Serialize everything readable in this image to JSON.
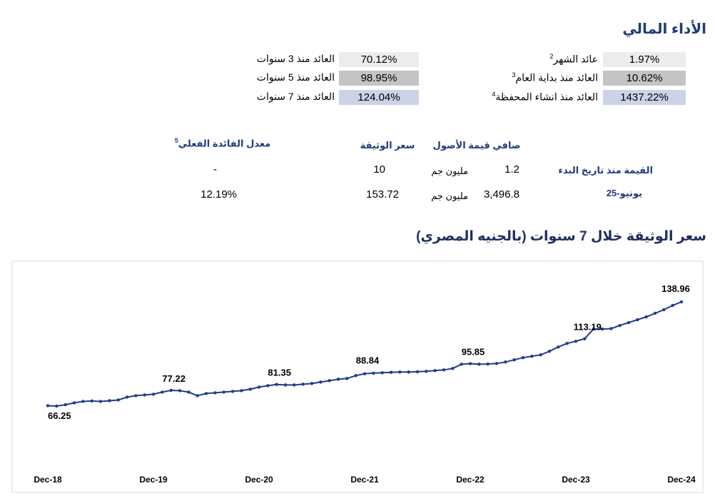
{
  "header": {
    "title": "الأداء المالي"
  },
  "returns": {
    "right": [
      {
        "label": "عائد الشهر",
        "note": "2",
        "value": "1.97%"
      },
      {
        "label": "العائد منذ بداية العام",
        "note": "3",
        "value": "10.62%"
      },
      {
        "label": "العائد منذ انشاء المحفظة",
        "note": "4",
        "value": "1437.22%"
      }
    ],
    "left": [
      {
        "label": "العائد منذ 3 سنوات",
        "value": "70.12%"
      },
      {
        "label": "العائد منذ 5 سنوات",
        "value": "98.95%"
      },
      {
        "label": "العائد منذ 7 سنوات",
        "value": "124.04%"
      }
    ]
  },
  "table": {
    "headers": {
      "nav": "صافي قيمة الأصول",
      "price": "سعر الوثيقة",
      "rate": "معدل الفائدة الفعلي",
      "rate_note": "5"
    },
    "rows": [
      {
        "label": "القيمة منذ تاريخ البدء",
        "nav": "1.2",
        "unit": "مليون جم",
        "price": "10",
        "rate": "-"
      },
      {
        "label": "يونيو-25",
        "nav": "3,496.8",
        "unit": "مليون جم",
        "price": "153.72",
        "rate": "12.19%"
      }
    ]
  },
  "chart_data": {
    "type": "line",
    "title": "سعر الوثيقة خلال 7 سنوات (بالجنيه المصري)",
    "color": "#1f3c8c",
    "categories": [
      "Dec-18",
      null,
      null,
      null,
      null,
      null,
      null,
      null,
      null,
      null,
      null,
      null,
      "Dec-19",
      null,
      null,
      null,
      null,
      null,
      null,
      null,
      null,
      null,
      null,
      null,
      "Dec-20",
      null,
      null,
      null,
      null,
      null,
      null,
      null,
      null,
      null,
      null,
      null,
      "Dec-21",
      null,
      null,
      null,
      null,
      null,
      null,
      null,
      null,
      null,
      null,
      null,
      "Dec-22",
      null,
      null,
      null,
      null,
      null,
      null,
      null,
      null,
      null,
      null,
      null,
      "Dec-23",
      null,
      null,
      null,
      null,
      null,
      null,
      null,
      null,
      null,
      null,
      null,
      "Dec-24"
    ],
    "values": [
      66.5,
      66.25,
      67.2,
      68.5,
      69.5,
      69.8,
      69.5,
      70.0,
      70.5,
      72.5,
      73.5,
      74.0,
      74.5,
      76.0,
      77.22,
      77.0,
      76.0,
      73.5,
      75.0,
      75.5,
      76.0,
      76.5,
      77.0,
      78.0,
      79.5,
      80.5,
      81.35,
      81.0,
      81.0,
      81.5,
      82.0,
      83.0,
      84.0,
      85.0,
      85.5,
      87.5,
      88.84,
      89.2,
      89.5,
      89.8,
      90.0,
      90.0,
      90.2,
      90.5,
      91.0,
      91.5,
      92.5,
      95.5,
      95.85,
      95.5,
      95.6,
      96.0,
      97.0,
      98.5,
      100.0,
      101.0,
      102.0,
      104.5,
      107.5,
      110.0,
      111.5,
      113.19,
      120.0,
      120.0,
      120.3,
      122.5,
      124.5,
      126.5,
      128.5,
      131.0,
      133.5,
      136.5,
      138.96
    ]
  }
}
